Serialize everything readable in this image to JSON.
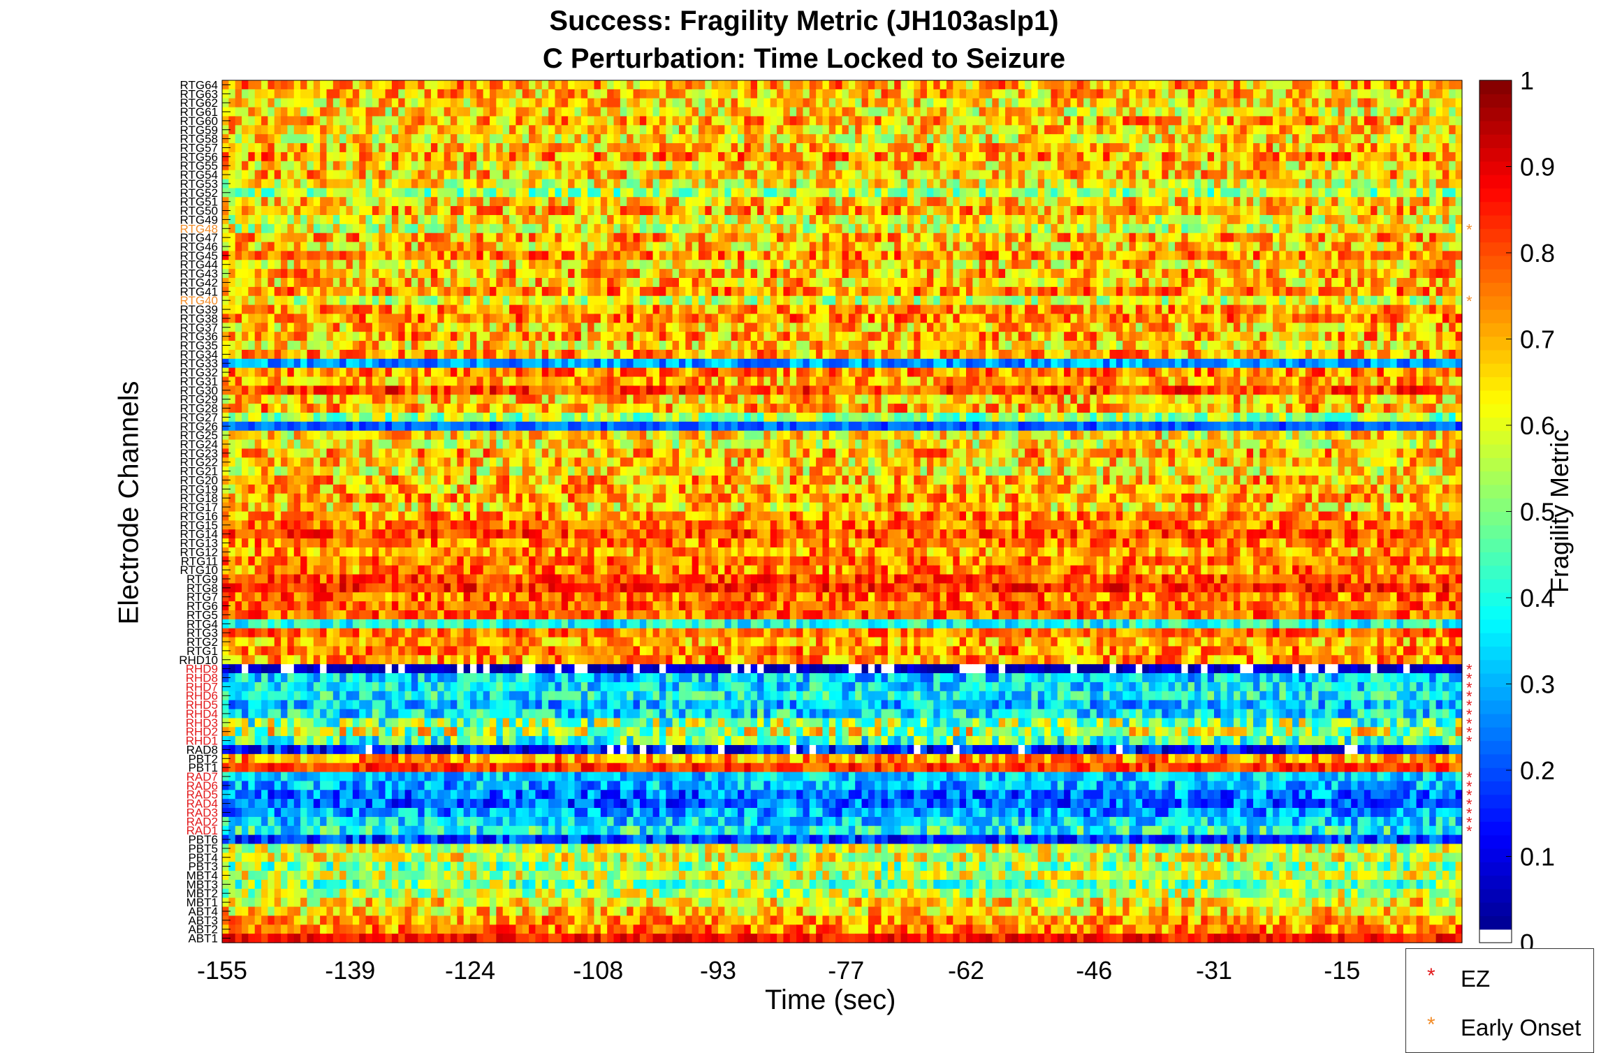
{
  "title_lines": [
    "Success: Fragility Metric (JH103aslp1)",
    "C Perturbation:  Time Locked to Seizure"
  ],
  "xlabel": "Time (sec)",
  "ylabel": "Electrode Channels",
  "colorbar_label": "Fragility Metric",
  "legend": [
    {
      "label": "EZ",
      "marker": "*",
      "color": "#e31a1c"
    },
    {
      "label": "Early Onset",
      "marker": "*",
      "color": "#f28c28"
    }
  ],
  "colors": {
    "ez": "#e31a1c",
    "early_onset": "#f28c28",
    "default_label": "#000000"
  },
  "chart_data": {
    "type": "heatmap",
    "colormap": "jet",
    "clim": [
      0,
      1
    ],
    "colorbar_ticks": [
      0,
      0.1,
      0.2,
      0.3,
      0.4,
      0.5,
      0.6,
      0.7,
      0.8,
      0.9,
      1
    ],
    "colorbar_tick_labels": [
      "0",
      "0.1",
      "0.2",
      "0.3",
      "0.4",
      "0.5",
      "0.6",
      "0.7",
      "0.8",
      "0.9",
      "1"
    ],
    "x_ticks": [
      -155,
      -139,
      -124,
      -108,
      -93,
      -77,
      -62,
      -46,
      -31,
      -15
    ],
    "x_tick_labels": [
      "-155",
      "-139",
      "-124",
      "-108",
      "-93",
      "-77",
      "-62",
      "-46",
      "-31",
      "-15"
    ],
    "xlim": [
      -155,
      0
    ],
    "channels": [
      "RTG64",
      "RTG63",
      "RTG62",
      "RTG61",
      "RTG60",
      "RTG59",
      "RTG58",
      "RTG57",
      "RTG56",
      "RTG55",
      "RTG54",
      "RTG53",
      "RTG52",
      "RTG51",
      "RTG50",
      "RTG49",
      "RTG48",
      "RTG47",
      "RTG46",
      "RTG45",
      "RTG44",
      "RTG43",
      "RTG42",
      "RTG41",
      "RTG40",
      "RTG39",
      "RTG38",
      "RTG37",
      "RTG36",
      "RTG35",
      "RTG34",
      "RTG33",
      "RTG32",
      "RTG31",
      "RTG30",
      "RTG29",
      "RTG28",
      "RTG27",
      "RTG26",
      "RTG25",
      "RTG24",
      "RTG23",
      "RTG22",
      "RTG21",
      "RTG20",
      "RTG19",
      "RTG18",
      "RTG17",
      "RTG16",
      "RTG15",
      "RTG14",
      "RTG13",
      "RTG12",
      "RTG11",
      "RTG10",
      "RTG9",
      "RTG8",
      "RTG7",
      "RTG6",
      "RTG5",
      "RTG4",
      "RTG3",
      "RTG2",
      "RTG1",
      "RHD10",
      "RHD9",
      "RHD8",
      "RHD7",
      "RHD6",
      "RHD5",
      "RHD4",
      "RHD3",
      "RHD2",
      "RHD1",
      "RAD8",
      "PBT2",
      "PBT1",
      "RAD7",
      "RAD6",
      "RAD5",
      "RAD4",
      "RAD3",
      "RAD2",
      "RAD1",
      "PBT6",
      "PBT5",
      "PBT4",
      "PBT3",
      "MBT4",
      "MBT3",
      "MBT2",
      "MBT1",
      "ABT4",
      "ABT3",
      "ABT2",
      "ABT1"
    ],
    "ez_channels": [
      "RHD9",
      "RHD8",
      "RHD7",
      "RHD6",
      "RHD5",
      "RHD4",
      "RHD3",
      "RHD2",
      "RHD1",
      "RAD7",
      "RAD6",
      "RAD5",
      "RAD4",
      "RAD3",
      "RAD2",
      "RAD1"
    ],
    "early_onset_channels": [
      "RTG48",
      "RTG40"
    ],
    "row_mean_fragility": [
      0.7,
      0.68,
      0.66,
      0.64,
      0.7,
      0.66,
      0.64,
      0.68,
      0.72,
      0.66,
      0.68,
      0.62,
      0.52,
      0.66,
      0.7,
      0.62,
      0.6,
      0.7,
      0.66,
      0.74,
      0.66,
      0.7,
      0.68,
      0.74,
      0.58,
      0.72,
      0.74,
      0.68,
      0.7,
      0.66,
      0.7,
      0.28,
      0.74,
      0.7,
      0.82,
      0.68,
      0.7,
      0.52,
      0.22,
      0.64,
      0.62,
      0.7,
      0.66,
      0.64,
      0.7,
      0.68,
      0.72,
      0.66,
      0.74,
      0.76,
      0.8,
      0.74,
      0.72,
      0.76,
      0.74,
      0.8,
      0.84,
      0.76,
      0.78,
      0.78,
      0.4,
      0.76,
      0.7,
      0.74,
      0.72,
      0.05,
      0.34,
      0.36,
      0.38,
      0.32,
      0.36,
      0.5,
      0.56,
      0.44,
      0.14,
      0.72,
      0.82,
      0.32,
      0.3,
      0.24,
      0.22,
      0.28,
      0.34,
      0.4,
      0.18,
      0.58,
      0.6,
      0.52,
      0.58,
      0.5,
      0.56,
      0.64,
      0.66,
      0.72,
      0.74,
      0.86
    ],
    "row_variability": [
      0.16,
      0.16,
      0.16,
      0.16,
      0.16,
      0.16,
      0.16,
      0.16,
      0.16,
      0.16,
      0.16,
      0.16,
      0.14,
      0.16,
      0.16,
      0.16,
      0.16,
      0.16,
      0.16,
      0.14,
      0.16,
      0.16,
      0.16,
      0.14,
      0.14,
      0.14,
      0.14,
      0.16,
      0.16,
      0.16,
      0.16,
      0.1,
      0.14,
      0.14,
      0.12,
      0.16,
      0.16,
      0.14,
      0.08,
      0.16,
      0.16,
      0.16,
      0.16,
      0.16,
      0.16,
      0.16,
      0.14,
      0.16,
      0.14,
      0.12,
      0.12,
      0.14,
      0.14,
      0.12,
      0.14,
      0.12,
      0.1,
      0.14,
      0.12,
      0.12,
      0.12,
      0.12,
      0.14,
      0.14,
      0.14,
      0.06,
      0.14,
      0.14,
      0.14,
      0.14,
      0.16,
      0.22,
      0.22,
      0.18,
      0.14,
      0.14,
      0.1,
      0.12,
      0.14,
      0.14,
      0.14,
      0.14,
      0.14,
      0.16,
      0.12,
      0.16,
      0.16,
      0.18,
      0.16,
      0.18,
      0.16,
      0.16,
      0.16,
      0.14,
      0.14,
      0.08
    ]
  }
}
